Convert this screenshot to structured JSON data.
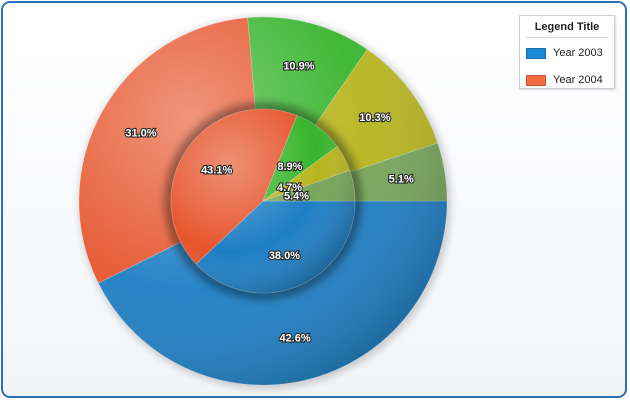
{
  "chart_data": {
    "type": "pie",
    "subtype": "doughnut",
    "title": "",
    "legend": {
      "title": "Legend Title",
      "placement": "top-right",
      "items": [
        {
          "label": "Year 2003",
          "color": "#1d8ad6"
        },
        {
          "label": "Year 2004",
          "color": "#f36b42"
        }
      ]
    },
    "series": [
      {
        "ring": "outer",
        "values": [
          42.6,
          31.0,
          10.9,
          10.3,
          5.1
        ],
        "labels": [
          "42.6%",
          "31.0%",
          "10.9%",
          "10.3%",
          "5.1%"
        ],
        "colors": [
          "#1d7ec4",
          "#e6552c",
          "#37b42c",
          "#b7b51e",
          "#76a55a"
        ]
      },
      {
        "ring": "inner",
        "values": [
          38.0,
          43.1,
          8.9,
          4.7,
          5.4
        ],
        "labels": [
          "38.0%",
          "43.1%",
          "8.9%",
          "4.7%",
          "5.4%"
        ],
        "colors": [
          "#1d7ec4",
          "#e6552c",
          "#37b42c",
          "#b7b51e",
          "#76a55a"
        ]
      }
    ]
  }
}
